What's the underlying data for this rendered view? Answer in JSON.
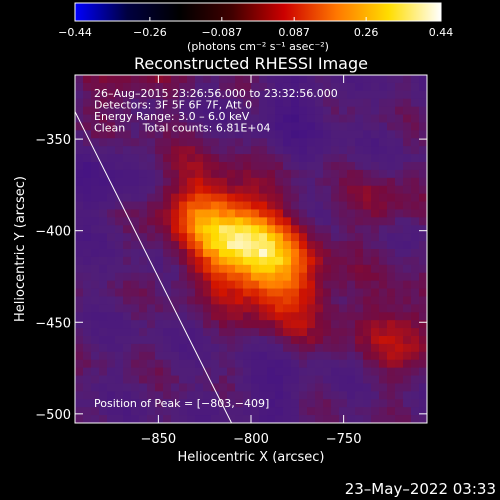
{
  "chart_data": {
    "type": "heatmap",
    "title": "Reconstructed RHESSI Image",
    "xlabel": "Heliocentric X (arcsec)",
    "ylabel": "Heliocentric Y (arcsec)",
    "xlim": [
      -895,
      -705
    ],
    "ylim": [
      -505,
      -315
    ],
    "x_ticks": [
      {
        "value": -850,
        "label": "−850"
      },
      {
        "value": -800,
        "label": "−800"
      },
      {
        "value": -750,
        "label": "−750"
      }
    ],
    "y_ticks": [
      {
        "value": -350,
        "label": "−350"
      },
      {
        "value": -400,
        "label": "−400"
      },
      {
        "value": -450,
        "label": "−450"
      },
      {
        "value": -500,
        "label": "−500"
      }
    ],
    "colorbar": {
      "min": -0.44,
      "max": 0.44,
      "tick_labels": [
        "−0.44",
        "−0.26",
        "−0.087",
        "0.087",
        "0.26",
        "0.44"
      ],
      "tick_values": [
        -0.44,
        -0.26,
        -0.087,
        0.087,
        0.26,
        0.44
      ],
      "unit_label": "(photons cm⁻² s⁻¹ asec⁻²)",
      "stops": [
        "#0000ff",
        "#000040",
        "#000000",
        "#400000",
        "#cc0000",
        "#ff7700",
        "#ffdd00",
        "#ffffff"
      ]
    },
    "annotations": [
      "26–Aug–2015 23:26:56.000 to 23:32:56.000",
      "Detectors: 3F 5F 6F 7F, Att 0",
      "Energy Range: 3.0 – 6.0 keV",
      "Clean     Total counts: 6.81E+04"
    ],
    "peak_label": "Position of Peak = [−803,−409]",
    "peak": {
      "x": -803,
      "y": -409,
      "value": 0.44
    },
    "limb_line": {
      "x1": -895,
      "y1": -335,
      "x2": -808,
      "y2": -510
    },
    "timestamp": "23–May–2022 03:33"
  }
}
